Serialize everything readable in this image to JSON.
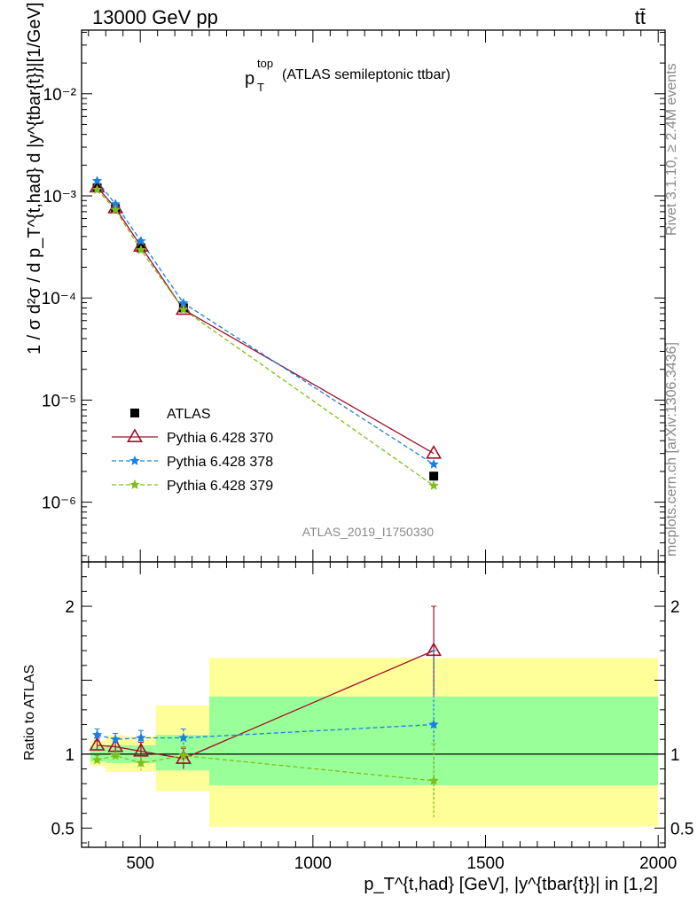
{
  "header": {
    "left": "13000 GeV pp",
    "right": "tt̄"
  },
  "side": {
    "rivet": "Rivet 3.1.10, ≥ 2.4M events",
    "mcplots": "mcplots.cern.ch [arXiv:1306.3436]"
  },
  "title": {
    "main": "p",
    "sup": "top",
    "sub": "T",
    "rest": "(ATLAS semileptonic ttbar)"
  },
  "analysis_id": "ATLAS_2019_I1750330",
  "ylabel_main": "1 / σ d²σ / d p_T^{t,had} d |y^{tbar{t}}|[1/GeV]",
  "ylabel_ratio": "Ratio to ATLAS",
  "xlabel": "p_T^{t,had} [GeV], |y^{tbar{t}}| in [1,2]",
  "colors": {
    "data": "#000000",
    "p370": "#a0102a",
    "p378": "#1a7fe0",
    "p379": "#7fbf1a",
    "band_inner": "#99ff99",
    "band_outer": "#ffff99"
  },
  "chart_data": {
    "type": "line",
    "x_range": [
      330,
      2020
    ],
    "main": {
      "yscale": "log",
      "ylim": [
        2.6e-07,
        0.042
      ],
      "ytick_labels": [
        "10⁻⁶",
        "10⁻⁵",
        "10⁻⁴",
        "10⁻³",
        "10⁻²"
      ],
      "ytick_values": [
        1e-06,
        1e-05,
        0.0001,
        0.001,
        0.01
      ]
    },
    "ratio": {
      "ylim": [
        0.37,
        2.3
      ],
      "yticks": [
        0.5,
        1,
        2
      ],
      "ytick_labels": [
        "0.5",
        "1",
        "2"
      ]
    },
    "xticks": [
      500,
      1000,
      1500,
      2000
    ],
    "xtick_labels": [
      "500",
      "1000",
      "1500",
      "2000"
    ],
    "bins": [
      [
        355,
        400
      ],
      [
        400,
        455
      ],
      [
        455,
        545
      ],
      [
        545,
        700
      ],
      [
        700,
        2000
      ]
    ],
    "x": [
      375,
      428,
      502,
      625,
      1350
    ],
    "series": [
      {
        "name": "ATLAS",
        "style": "data",
        "values": [
          0.0012,
          0.00075,
          0.00031,
          8e-05,
          1.8e-06
        ],
        "ratio": [
          1,
          1,
          1,
          1,
          1
        ]
      },
      {
        "name": "Pythia 6.428 370",
        "style": "p370",
        "values": [
          0.00122,
          0.00076,
          0.00032,
          7.7e-05,
          3e-06
        ],
        "ratio": [
          1.06,
          1.05,
          1.02,
          0.97,
          1.7
        ]
      },
      {
        "name": "Pythia 6.428 378",
        "style": "p378",
        "values": [
          0.0014,
          0.00083,
          0.00036,
          8.9e-05,
          2.35e-06
        ],
        "ratio": [
          1.13,
          1.1,
          1.11,
          1.11,
          1.2
        ]
      },
      {
        "name": "Pythia 6.428 379",
        "style": "p379",
        "values": [
          0.00115,
          0.00073,
          0.000295,
          7.7e-05,
          1.45e-06
        ],
        "ratio": [
          0.96,
          0.99,
          0.94,
          0.99,
          0.82
        ]
      }
    ],
    "ratio_errors": {
      "Pythia 6.428 370": [
        0.03,
        0.03,
        0.06,
        0.07,
        0.3
      ],
      "Pythia 6.428 378": [
        0.04,
        0.04,
        0.05,
        0.06,
        0.5
      ],
      "Pythia 6.428 379": [
        0.03,
        0.03,
        0.05,
        0.06,
        0.25
      ]
    },
    "band_inner": [
      [
        0.95,
        1.05
      ],
      [
        0.94,
        1.06
      ],
      [
        0.94,
        1.06
      ],
      [
        0.89,
        1.13
      ],
      [
        0.79,
        1.39
      ]
    ],
    "band_outer": [
      [
        0.92,
        1.09
      ],
      [
        0.88,
        1.13
      ],
      [
        0.88,
        1.12
      ],
      [
        0.75,
        1.33
      ],
      [
        0.51,
        1.65
      ]
    ]
  }
}
